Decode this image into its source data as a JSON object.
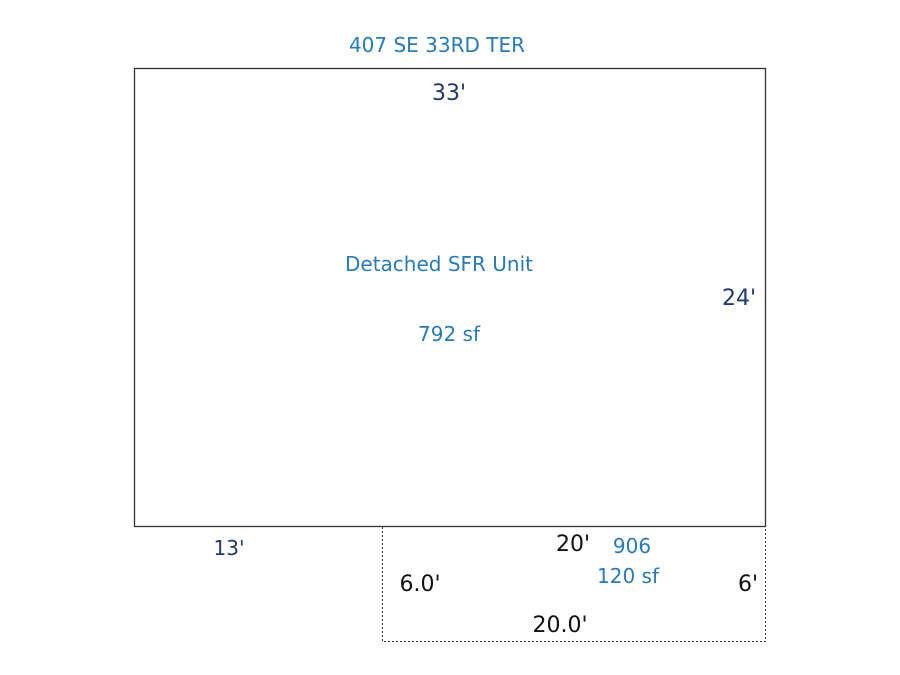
{
  "address": "407 SE 33RD TER",
  "colors": {
    "label": "#2a7ab8",
    "dimension": "#1f3a6b",
    "outline": "#333333"
  },
  "main_area": {
    "name": "Detached SFR Unit",
    "area": "792 sf",
    "dimensions": {
      "top": "33'",
      "right": "24'",
      "bottom_left": "13'"
    }
  },
  "secondary_area": {
    "code": "906",
    "area": "120 sf",
    "dimensions": {
      "top": "20'",
      "left": "6.0'",
      "right": "6'",
      "bottom": "20.0'"
    }
  }
}
